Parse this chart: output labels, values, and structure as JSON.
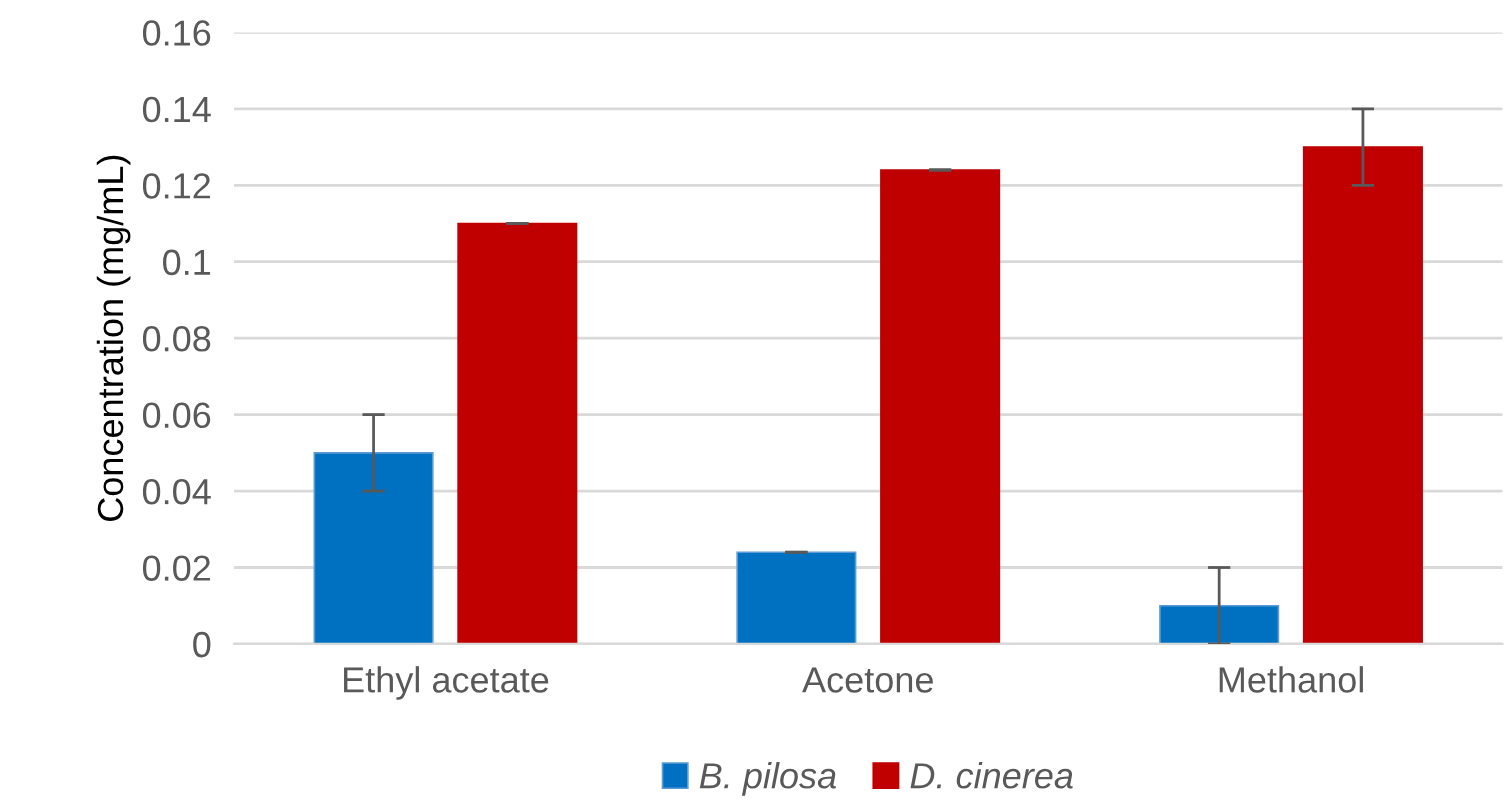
{
  "chart_data": {
    "type": "bar",
    "ylabel": "Concentration (mg/mL)",
    "categories": [
      "Ethyl acetate",
      "Acetone",
      "Methanol"
    ],
    "series": [
      {
        "name": "B. pilosa",
        "color": "#0070c0",
        "values": [
          0.05,
          0.024,
          0.01
        ],
        "errors": [
          0.01,
          0,
          0.01
        ]
      },
      {
        "name": "D. cinerea",
        "color": "#c00000",
        "values": [
          0.11,
          0.124,
          0.13
        ],
        "errors": [
          0,
          0,
          0.01
        ]
      }
    ],
    "ylim": [
      0,
      0.16
    ],
    "yticks": [
      0,
      0.02,
      0.04,
      0.06,
      0.08,
      0.1,
      0.12,
      0.14,
      0.16
    ],
    "grid": "y",
    "legend": "bottom"
  }
}
